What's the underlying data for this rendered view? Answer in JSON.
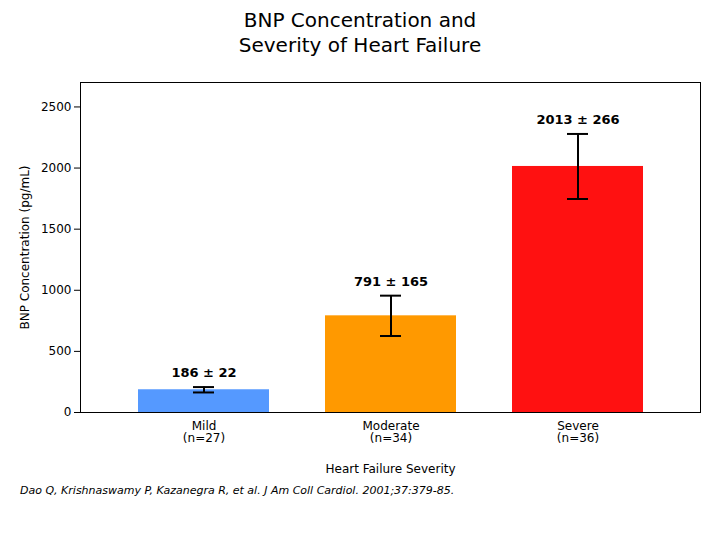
{
  "chart_data": {
    "type": "bar",
    "title": "BNP Concentration and\nSeverity of Heart Failure",
    "x_label": "Heart Failure Severity",
    "y_label": "BNP Concentration (pg/mL)",
    "categories": [
      "Mild\n(n=27)",
      "Moderate\n(n=34)",
      "Severe\n(n=36)"
    ],
    "values": [
      186,
      791,
      2013
    ],
    "errors": [
      22,
      165,
      266
    ],
    "colors": [
      "#5599FF",
      "#FF9900",
      "#FF1111"
    ],
    "annotations": [
      "186 ± 22",
      "791 ± 165",
      "2013 ± 266"
    ],
    "ylim": [
      0,
      2700
    ],
    "yticks": [
      0,
      500,
      1000,
      1500,
      2000,
      2500
    ],
    "grid": false,
    "caption": "Dao Q, Krishnaswamy P, Kazanegra R, et al.  J Am Coll Cardiol. 2001;37:379-85."
  }
}
